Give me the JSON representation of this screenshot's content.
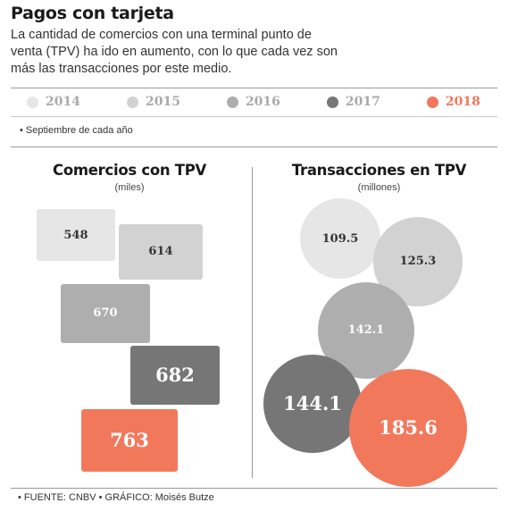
{
  "header": {
    "title": "Pagos con tarjeta",
    "subtitle": "La cantidad de comercios con una terminal punto de venta (TPV) ha ido en aumento, con lo que cada vez son más las transacciones por este medio."
  },
  "legend": [
    {
      "label": "2014",
      "color": "#e6e6e6"
    },
    {
      "label": "2015",
      "color": "#d2d2d2"
    },
    {
      "label": "2016",
      "color": "#aeaeae"
    },
    {
      "label": "2017",
      "color": "#767676"
    },
    {
      "label": "2018",
      "color": "#f2785c"
    }
  ],
  "note": "• Septiembre de cada año",
  "footer": "• FUENTE: CNBV  • GRÁFICO: Moisés Butze",
  "chart_data": [
    {
      "type": "bar",
      "title": "Comercios con TPV",
      "unit": "(miles)",
      "categories": [
        "2014",
        "2015",
        "2016",
        "2017",
        "2018"
      ],
      "values": [
        548,
        614,
        670,
        682,
        763
      ],
      "labels": [
        "548",
        "614",
        "670",
        "682",
        "763"
      ],
      "colors": [
        "#e6e6e6",
        "#d2d2d2",
        "#aeaeae",
        "#767676",
        "#f2785c"
      ]
    },
    {
      "type": "bubble",
      "title": "Transacciones en TPV",
      "unit": "(millones)",
      "categories": [
        "2014",
        "2015",
        "2016",
        "2017",
        "2018"
      ],
      "values": [
        109.5,
        125.3,
        142.1,
        144.1,
        185.6
      ],
      "labels": [
        "109.5",
        "125.3",
        "142.1",
        "144.1",
        "185.6"
      ],
      "colors": [
        "#e6e6e6",
        "#d2d2d2",
        "#aeaeae",
        "#767676",
        "#f2785c"
      ]
    }
  ]
}
